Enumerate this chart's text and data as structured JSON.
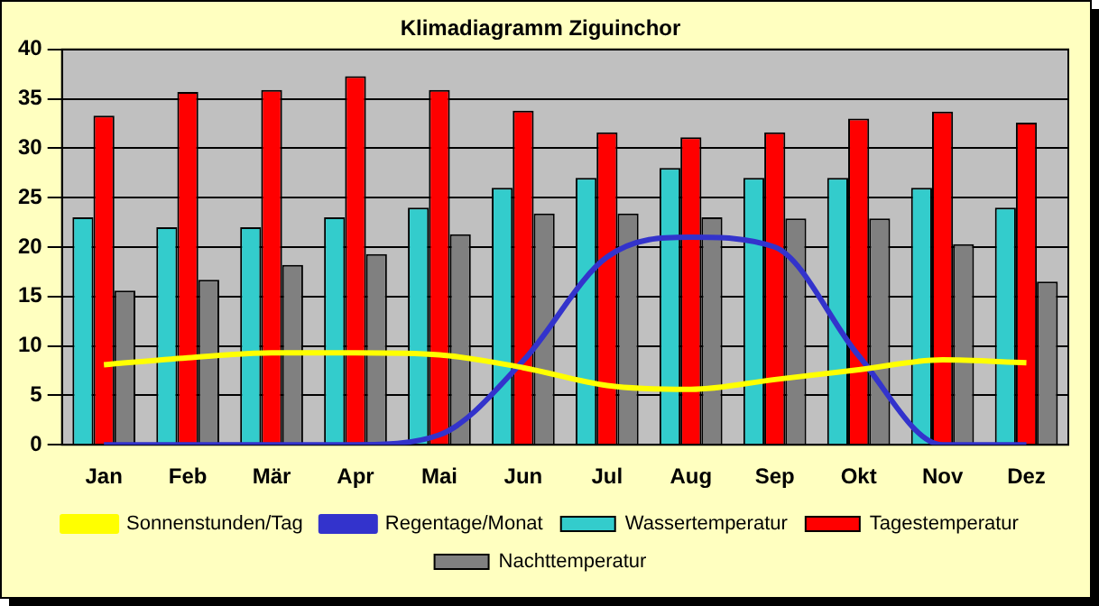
{
  "chart_data": {
    "type": "bar",
    "title": "Klimadiagramm Ziguinchor",
    "categories": [
      "Jan",
      "Feb",
      "Mär",
      "Apr",
      "Mai",
      "Jun",
      "Jul",
      "Aug",
      "Sep",
      "Okt",
      "Nov",
      "Dez"
    ],
    "series": [
      {
        "name": "Wassertemperatur",
        "color": "#33cccc",
        "values": [
          23,
          22,
          22,
          23,
          24,
          26,
          27,
          28,
          27,
          27,
          26,
          24
        ]
      },
      {
        "name": "Tagestemperatur",
        "color": "#ff0000",
        "values": [
          33.3,
          35.7,
          35.9,
          37.3,
          35.9,
          33.8,
          31.6,
          31.1,
          31.6,
          33,
          33.7,
          32.6
        ]
      },
      {
        "name": "Nachttemperatur",
        "color": "#808080",
        "values": [
          15.6,
          16.7,
          18.2,
          19.3,
          21.3,
          23.4,
          23.4,
          23,
          22.9,
          22.9,
          20.3,
          16.5
        ]
      },
      {
        "name": "Sonnenstunden/Tag",
        "type": "line",
        "color": "#ffff00",
        "values": [
          8.1,
          8.8,
          9.3,
          9.3,
          9.1,
          7.8,
          6,
          5.6,
          6.6,
          7.6,
          8.6,
          8.3
        ]
      },
      {
        "name": "Regentage/Monat",
        "type": "line",
        "color": "#3333cc",
        "values": [
          0,
          0,
          0,
          0,
          1,
          8.5,
          19,
          21,
          20,
          9,
          0,
          0
        ]
      }
    ],
    "ylim": [
      0,
      40
    ],
    "yticks": [
      0,
      5,
      10,
      15,
      20,
      25,
      30,
      35,
      40
    ],
    "grid": "y",
    "legend": "bottom",
    "marker": "none",
    "line_style": "solid"
  }
}
